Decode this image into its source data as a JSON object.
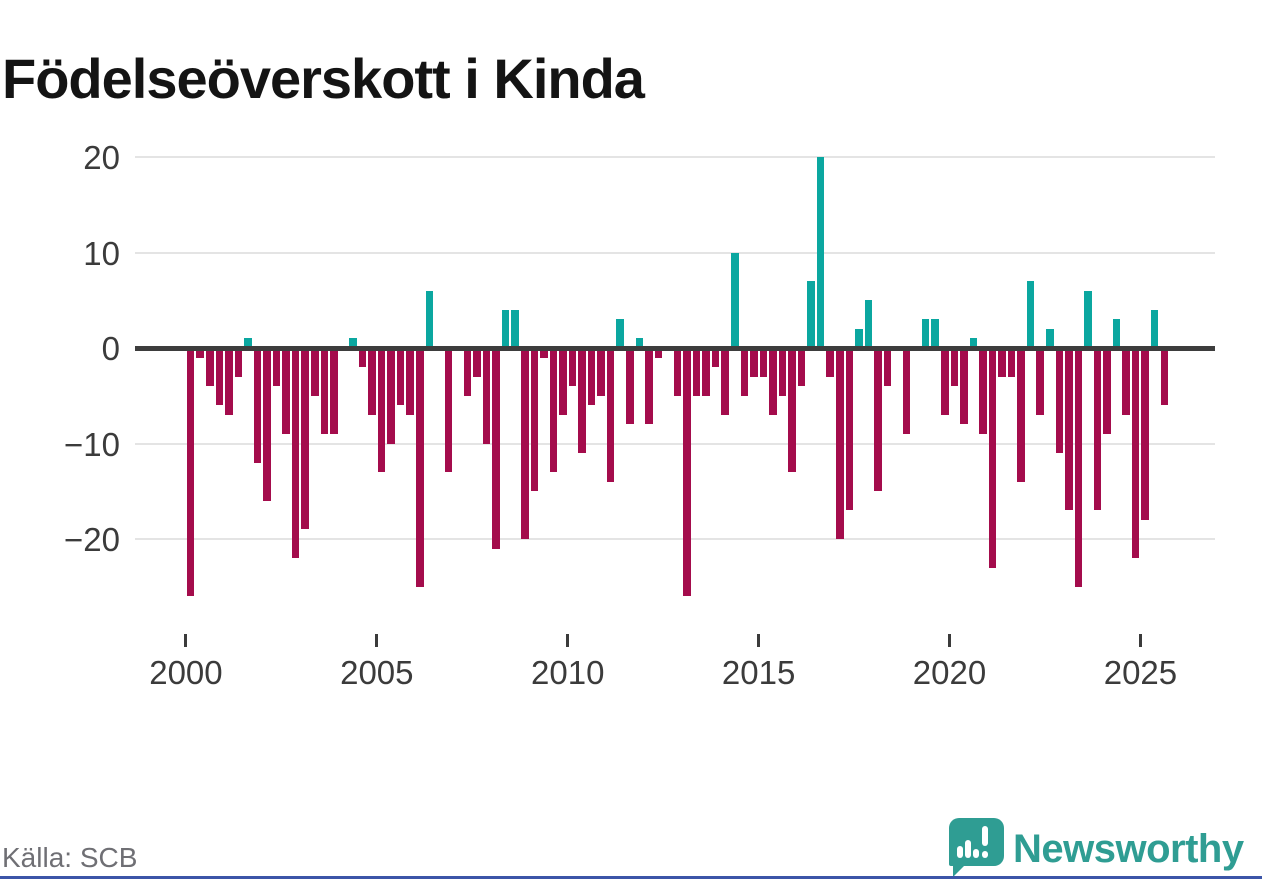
{
  "title": "Födelseöverskott i Kinda",
  "source": "Källa: SCB",
  "logo": {
    "brand": "Newsworthy"
  },
  "colors": {
    "positive_bar": "#0ba7a0",
    "negative_bar": "#a40c4c",
    "zero_line": "#3d3d3d",
    "gridline": "#e4e4e4",
    "axis_text": "#3b3b3b",
    "title_text": "#141414",
    "source_text": "#6f6f74",
    "logo_teal": "#2f9d93",
    "footer_bar": "#3c55a8"
  },
  "chart_data": {
    "type": "bar",
    "title": "Födelseöverskott i Kinda",
    "frequency": "quarterly",
    "start": "2000Q1",
    "end": "2025Q3",
    "grid": "horizontal",
    "legend": "none",
    "y_tick_labels": [
      "20",
      "10",
      "0",
      "−10",
      "−20"
    ],
    "y_tick_values": [
      20,
      10,
      0,
      -10,
      -20
    ],
    "x_tick_labels": [
      "2000",
      "2005",
      "2010",
      "2015",
      "2020",
      "2025"
    ],
    "x_tick_years": [
      2000,
      2005,
      2010,
      2015,
      2020,
      2025
    ],
    "ylim": [
      -27,
      21
    ],
    "years": [
      {
        "year": 2000,
        "values": [
          -26,
          -1,
          -4,
          -6
        ]
      },
      {
        "year": 2001,
        "values": [
          -7,
          -3,
          1,
          -12
        ]
      },
      {
        "year": 2002,
        "values": [
          -16,
          -4,
          -9,
          -22
        ]
      },
      {
        "year": 2003,
        "values": [
          -19,
          -5,
          -9,
          -9
        ]
      },
      {
        "year": 2004,
        "values": [
          0,
          1,
          -2,
          -7
        ]
      },
      {
        "year": 2005,
        "values": [
          -13,
          -10,
          -6,
          -7
        ]
      },
      {
        "year": 2006,
        "values": [
          -25,
          6,
          0,
          -13
        ]
      },
      {
        "year": 2007,
        "values": [
          0,
          -5,
          -3,
          -10
        ]
      },
      {
        "year": 2008,
        "values": [
          -21,
          4,
          4,
          -20
        ]
      },
      {
        "year": 2009,
        "values": [
          -15,
          -1,
          -13,
          -7
        ]
      },
      {
        "year": 2010,
        "values": [
          -4,
          -11,
          -6,
          -5
        ]
      },
      {
        "year": 2011,
        "values": [
          -14,
          3,
          -8,
          1
        ]
      },
      {
        "year": 2012,
        "values": [
          -8,
          -1,
          0,
          -5
        ]
      },
      {
        "year": 2013,
        "values": [
          -26,
          -5,
          -5,
          -2
        ]
      },
      {
        "year": 2014,
        "values": [
          -7,
          10,
          -5,
          -3
        ]
      },
      {
        "year": 2015,
        "values": [
          -3,
          -7,
          -5,
          -13
        ]
      },
      {
        "year": 2016,
        "values": [
          -4,
          7,
          20,
          -3
        ]
      },
      {
        "year": 2017,
        "values": [
          -20,
          -17,
          2,
          5
        ]
      },
      {
        "year": 2018,
        "values": [
          -15,
          -4,
          0,
          -9
        ]
      },
      {
        "year": 2019,
        "values": [
          0,
          3,
          3,
          -7
        ]
      },
      {
        "year": 2020,
        "values": [
          -4,
          -8,
          1,
          -9
        ]
      },
      {
        "year": 2021,
        "values": [
          -23,
          -3,
          -3,
          -14
        ]
      },
      {
        "year": 2022,
        "values": [
          7,
          -7,
          2,
          -11
        ]
      },
      {
        "year": 2023,
        "values": [
          -17,
          -25,
          6,
          -17
        ]
      },
      {
        "year": 2024,
        "values": [
          -9,
          3,
          -7,
          -22
        ]
      },
      {
        "year": 2025,
        "values": [
          -18,
          4,
          -6
        ]
      }
    ]
  }
}
